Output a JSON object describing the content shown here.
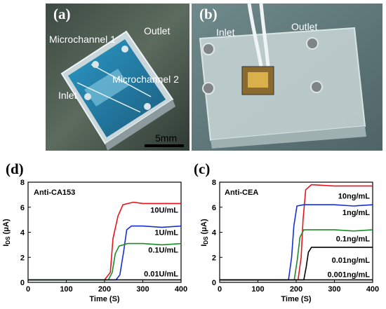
{
  "photos": {
    "a": {
      "panel_label": "(a)",
      "labels": {
        "outlet": "Outlet",
        "microchannel1": "Microchannel 1",
        "microchannel2": "Microchannel 2",
        "inlet": "Inlet",
        "scalebar": "5mm"
      }
    },
    "b": {
      "panel_label": "(b)",
      "labels": {
        "inlet": "Inlet",
        "outlet": "Outlet"
      }
    }
  },
  "chart_data": [
    {
      "panel_label": "(d)",
      "type": "line",
      "annotation_title": "Anti-CA153",
      "xlabel": "Time (S)",
      "ylabel": "IDS (μA)",
      "xlim": [
        0,
        400
      ],
      "ylim": [
        0,
        8
      ],
      "xticks": [
        "0",
        "100",
        "200",
        "300",
        "400"
      ],
      "yticks": [
        "0",
        "2",
        "4",
        "6",
        "8"
      ],
      "series": [
        {
          "label": "10U/mL",
          "color": "#e8141c",
          "label_y": 5.8,
          "points": [
            [
              0,
              0.2
            ],
            [
              100,
              0.2
            ],
            [
              200,
              0.2
            ],
            [
              215,
              0.8
            ],
            [
              222,
              3.5
            ],
            [
              235,
              5.3
            ],
            [
              248,
              6.2
            ],
            [
              275,
              6.4
            ],
            [
              300,
              6.3
            ],
            [
              350,
              6.3
            ],
            [
              400,
              6.3
            ]
          ]
        },
        {
          "label": "1U/mL",
          "color": "#1430d0",
          "label_y": 4.0,
          "points": [
            [
              0,
              0.2
            ],
            [
              100,
              0.2
            ],
            [
              230,
              0.2
            ],
            [
              240,
              0.6
            ],
            [
              250,
              2.5
            ],
            [
              258,
              4.2
            ],
            [
              270,
              4.5
            ],
            [
              300,
              4.5
            ],
            [
              350,
              4.4
            ],
            [
              400,
              4.5
            ]
          ]
        },
        {
          "label": "0.1U/mL",
          "color": "#1a8c28",
          "label_y": 2.6,
          "points": [
            [
              0,
              0.2
            ],
            [
              100,
              0.2
            ],
            [
              210,
              0.2
            ],
            [
              220,
              0.8
            ],
            [
              228,
              2.3
            ],
            [
              238,
              2.9
            ],
            [
              260,
              3.1
            ],
            [
              300,
              3.1
            ],
            [
              350,
              3.0
            ],
            [
              400,
              3.1
            ]
          ]
        },
        {
          "label": "0.01U/mL",
          "color": "#000000",
          "label_y": 0.7,
          "points": [
            [
              0,
              0.2
            ],
            [
              100,
              0.2
            ],
            [
              200,
              0.2
            ],
            [
              300,
              0.2
            ],
            [
              400,
              0.2
            ]
          ]
        }
      ]
    },
    {
      "panel_label": "(c)",
      "type": "line",
      "annotation_title": "Anti-CEA",
      "xlabel": "Time (S)",
      "ylabel": "IDS (μA)",
      "xlim": [
        0,
        400
      ],
      "ylim": [
        0,
        8
      ],
      "xticks": [
        "0",
        "100",
        "200",
        "300",
        "400"
      ],
      "yticks": [
        "0",
        "2",
        "4",
        "6",
        "8"
      ],
      "series": [
        {
          "label": "10ng/mL",
          "color": "#e8141c",
          "label_y": 6.9,
          "points": [
            [
              0,
              0.2
            ],
            [
              100,
              0.2
            ],
            [
              205,
              0.2
            ],
            [
              213,
              2.0
            ],
            [
              218,
              5.0
            ],
            [
              225,
              7.4
            ],
            [
              240,
              7.8
            ],
            [
              300,
              7.7
            ],
            [
              350,
              7.7
            ],
            [
              400,
              7.7
            ]
          ]
        },
        {
          "label": "1ng/mL",
          "color": "#1430d0",
          "label_y": 5.6,
          "points": [
            [
              0,
              0.2
            ],
            [
              100,
              0.2
            ],
            [
              180,
              0.2
            ],
            [
              188,
              2.0
            ],
            [
              194,
              4.5
            ],
            [
              202,
              6.1
            ],
            [
              220,
              6.2
            ],
            [
              300,
              6.2
            ],
            [
              350,
              6.1
            ],
            [
              400,
              6.2
            ]
          ]
        },
        {
          "label": "0.1ng/mL",
          "color": "#1a8c28",
          "label_y": 3.5,
          "points": [
            [
              0,
              0.2
            ],
            [
              100,
              0.2
            ],
            [
              195,
              0.2
            ],
            [
              203,
              1.8
            ],
            [
              210,
              3.6
            ],
            [
              220,
              4.2
            ],
            [
              300,
              4.2
            ],
            [
              350,
              4.1
            ],
            [
              400,
              4.2
            ]
          ]
        },
        {
          "label": "0.01ng/mL",
          "color": "#000000",
          "label_y": 1.8,
          "points": [
            [
              0,
              0.2
            ],
            [
              100,
              0.2
            ],
            [
              220,
              0.2
            ],
            [
              226,
              1.2
            ],
            [
              232,
              2.4
            ],
            [
              240,
              2.8
            ],
            [
              300,
              2.8
            ],
            [
              350,
              2.8
            ],
            [
              400,
              2.8
            ]
          ]
        },
        {
          "label": "0.001ng/mL",
          "color": "#000000",
          "label_y": 0.65,
          "points": [
            [
              0,
              0.2
            ],
            [
              100,
              0.2
            ],
            [
              200,
              0.2
            ],
            [
              300,
              0.2
            ],
            [
              400,
              0.2
            ]
          ]
        }
      ]
    }
  ]
}
